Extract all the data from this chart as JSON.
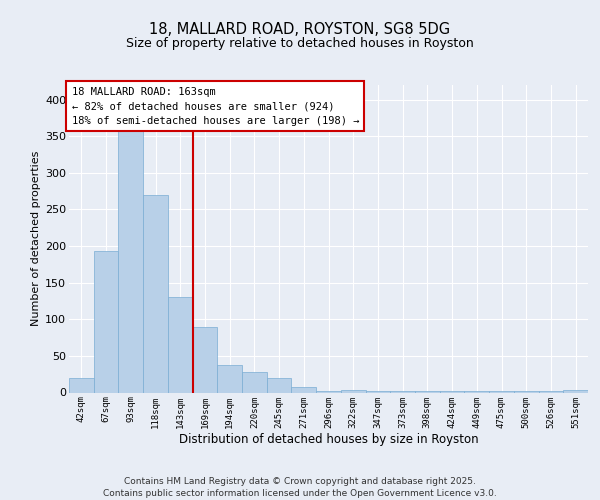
{
  "title1": "18, MALLARD ROAD, ROYSTON, SG8 5DG",
  "title2": "Size of property relative to detached houses in Royston",
  "xlabel": "Distribution of detached houses by size in Royston",
  "ylabel": "Number of detached properties",
  "bar_color": "#b8d0e8",
  "bar_edge_color": "#7aadd4",
  "vline_color": "#cc0000",
  "annotation_text": "18 MALLARD ROAD: 163sqm\n← 82% of detached houses are smaller (924)\n18% of semi-detached houses are larger (198) →",
  "annotation_box_color": "#ffffff",
  "annotation_border_color": "#cc0000",
  "categories": [
    "42sqm",
    "67sqm",
    "93sqm",
    "118sqm",
    "143sqm",
    "169sqm",
    "194sqm",
    "220sqm",
    "245sqm",
    "271sqm",
    "296sqm",
    "322sqm",
    "347sqm",
    "373sqm",
    "398sqm",
    "424sqm",
    "449sqm",
    "475sqm",
    "500sqm",
    "526sqm",
    "551sqm"
  ],
  "values": [
    20,
    193,
    365,
    270,
    130,
    90,
    38,
    28,
    20,
    8,
    2,
    3,
    2,
    2,
    2,
    2,
    2,
    2,
    2,
    2,
    3
  ],
  "ylim": [
    0,
    420
  ],
  "yticks": [
    0,
    50,
    100,
    150,
    200,
    250,
    300,
    350,
    400
  ],
  "vline_index": 4.5,
  "footer": "Contains HM Land Registry data © Crown copyright and database right 2025.\nContains public sector information licensed under the Open Government Licence v3.0.",
  "background_color": "#e8edf5",
  "plot_background": "#e8edf5",
  "grid_color": "#ffffff"
}
